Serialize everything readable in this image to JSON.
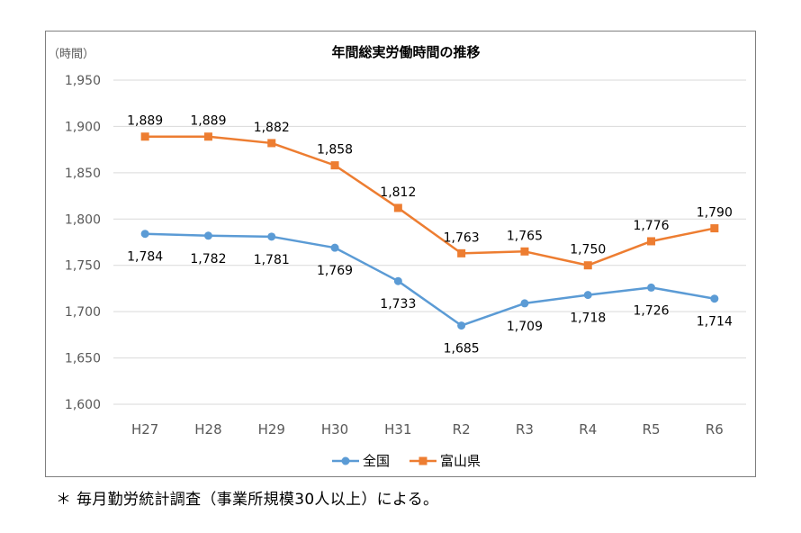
{
  "chart_data": {
    "type": "line",
    "title": "年間総実労働時間の推移",
    "ylabel": "（時間）",
    "xlabel": "",
    "categories": [
      "H27",
      "H28",
      "H29",
      "H30",
      "H31",
      "R2",
      "R3",
      "R4",
      "R5",
      "R6"
    ],
    "ylim": [
      1600,
      1950
    ],
    "yticks": [
      1600,
      1650,
      1700,
      1750,
      1800,
      1850,
      1900,
      1950
    ],
    "grid": true,
    "legend_position": "bottom",
    "series": [
      {
        "name": "全国",
        "color": "#5b9bd5",
        "marker": "circle",
        "values": [
          1784,
          1782,
          1781,
          1769,
          1733,
          1685,
          1709,
          1718,
          1726,
          1714
        ],
        "labels": [
          "1,784",
          "1,782",
          "1,781",
          "1,769",
          "1,733",
          "1,685",
          "1,709",
          "1,718",
          "1,726",
          "1,714"
        ]
      },
      {
        "name": "富山県",
        "color": "#ed7d31",
        "marker": "square",
        "values": [
          1889,
          1889,
          1882,
          1858,
          1812,
          1763,
          1765,
          1750,
          1776,
          1790
        ],
        "labels": [
          "1,889",
          "1,889",
          "1,882",
          "1,858",
          "1,812",
          "1,763",
          "1,765",
          "1,750",
          "1,776",
          "1,790"
        ]
      }
    ]
  },
  "footnote": "＊ 毎月勤労統計調査（事業所規模30人以上）による。"
}
